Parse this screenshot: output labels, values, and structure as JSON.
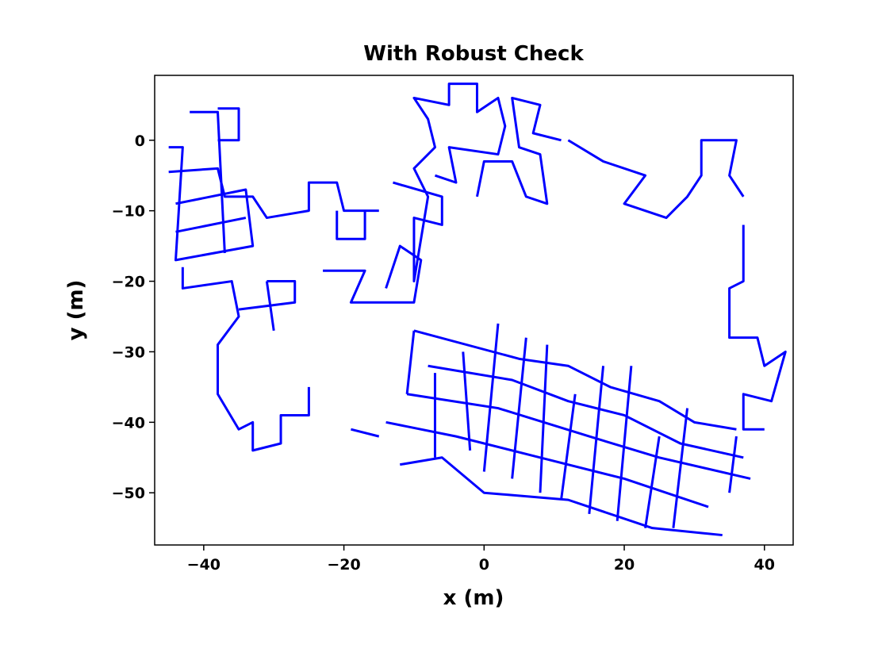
{
  "chart_data": {
    "type": "line",
    "title": "With Robust Check",
    "x_label": "x (m)",
    "y_label": "y (m)",
    "color": "#0000ff",
    "xlim": [
      -47,
      44.1
    ],
    "ylim": [
      -57.4,
      9.2
    ],
    "xticks": [
      {
        "value": -40,
        "label": "−40"
      },
      {
        "value": -20,
        "label": "−20"
      },
      0,
      20,
      40
    ],
    "yticks": [
      0,
      {
        "value": -10,
        "label": "−10"
      },
      {
        "value": -20,
        "label": "−20"
      },
      {
        "value": -30,
        "label": "−30"
      },
      {
        "value": -40,
        "label": "−40"
      },
      {
        "value": -50,
        "label": "−50"
      }
    ],
    "x": [
      -45,
      -43,
      -44,
      -33,
      -34,
      -44,
      null,
      -42,
      -38,
      -37,
      null,
      -38,
      -35,
      -35,
      -38,
      null,
      -45,
      -38,
      -37,
      -33,
      -31,
      -25,
      -25,
      -21,
      -20,
      -15,
      null,
      -44,
      -34,
      null,
      -43,
      -43,
      -36,
      -35,
      -38,
      -38,
      -38,
      -35,
      -33,
      -33,
      -29,
      -29,
      -25,
      -25,
      null,
      -31,
      -27,
      -27,
      -35,
      null,
      -31,
      -30,
      null,
      -21,
      -21,
      -17,
      -17,
      null,
      -23,
      -17,
      -19,
      -10,
      -9,
      -12,
      -14,
      null,
      -13,
      -6,
      -6,
      -10,
      -10,
      -8,
      -10,
      -7,
      -8,
      -10,
      -5,
      -5,
      -1,
      -1,
      2,
      3,
      2,
      -5,
      -4,
      -7,
      null,
      -1,
      0,
      4,
      6,
      9,
      8,
      5,
      4,
      8,
      7,
      11,
      null,
      12,
      17,
      23,
      20,
      26,
      29,
      31,
      31,
      36,
      35,
      37,
      null,
      37,
      37,
      35,
      35,
      39,
      40,
      43,
      41,
      37,
      37,
      40,
      null,
      -10,
      5,
      12,
      18,
      25,
      30,
      36,
      null,
      -8,
      4,
      12,
      20,
      28,
      37,
      null,
      -11,
      2,
      15,
      25,
      38,
      null,
      -14,
      -4,
      8,
      20,
      32,
      null,
      -12,
      -6,
      0,
      12,
      24,
      34,
      null,
      -7,
      -7,
      null,
      -3,
      -2,
      null,
      2,
      0,
      null,
      6,
      4,
      null,
      9,
      8,
      null,
      13,
      11,
      null,
      17,
      15,
      null,
      21,
      19,
      null,
      25,
      23,
      null,
      29,
      27,
      null,
      36,
      35,
      null,
      -19,
      -15,
      null,
      -10,
      -11
    ],
    "values": [
      -1,
      -1,
      -17,
      -15,
      -7,
      -9,
      null,
      4,
      4,
      -16,
      null,
      4.5,
      4.5,
      0,
      0,
      null,
      -4.5,
      -4,
      -8,
      -8,
      -11,
      -10,
      -6,
      -6,
      -10,
      -10,
      null,
      -13,
      -11,
      null,
      -18,
      -21,
      -20,
      -25,
      -29,
      -32,
      -36,
      -41,
      -40,
      -44,
      -43,
      -39,
      -39,
      -35,
      null,
      -20,
      -20,
      -23,
      -24,
      null,
      -20,
      -27,
      null,
      -10,
      -14,
      -14,
      -10,
      null,
      -18.5,
      -18.5,
      -23,
      -23,
      -17,
      -15,
      -21,
      null,
      -6,
      -8,
      -12,
      -11,
      -20,
      -8,
      -4,
      -1,
      3,
      6,
      5,
      8,
      8,
      4,
      6,
      2,
      -2,
      -1,
      -6,
      -5,
      null,
      -8,
      -3,
      -3,
      -8,
      -9,
      -2,
      -1,
      6,
      5,
      1,
      0,
      null,
      0,
      -3,
      -5,
      -9,
      -11,
      -8,
      -5,
      0,
      0,
      -5,
      -8,
      null,
      -12,
      -20,
      -21,
      -28,
      -28,
      -32,
      -30,
      -37,
      -36,
      -41,
      -41,
      null,
      -27,
      -31,
      -32,
      -35,
      -37,
      -40,
      -41,
      null,
      -32,
      -34,
      -37,
      -39,
      -43,
      -45,
      null,
      -36,
      -38,
      -42,
      -45,
      -48,
      null,
      -40,
      -42,
      -45,
      -48,
      -52,
      null,
      -46,
      -45,
      -50,
      -51,
      -55,
      -56,
      null,
      -33,
      -45,
      null,
      -30,
      -44,
      null,
      -26,
      -47,
      null,
      -28,
      -48,
      null,
      -29,
      -50,
      null,
      -36,
      -51,
      null,
      -32,
      -53,
      null,
      -32,
      -54,
      null,
      -42,
      -55,
      null,
      -38,
      -55,
      null,
      -42,
      -50,
      null,
      -41,
      -42,
      null,
      -27,
      -36
    ]
  }
}
